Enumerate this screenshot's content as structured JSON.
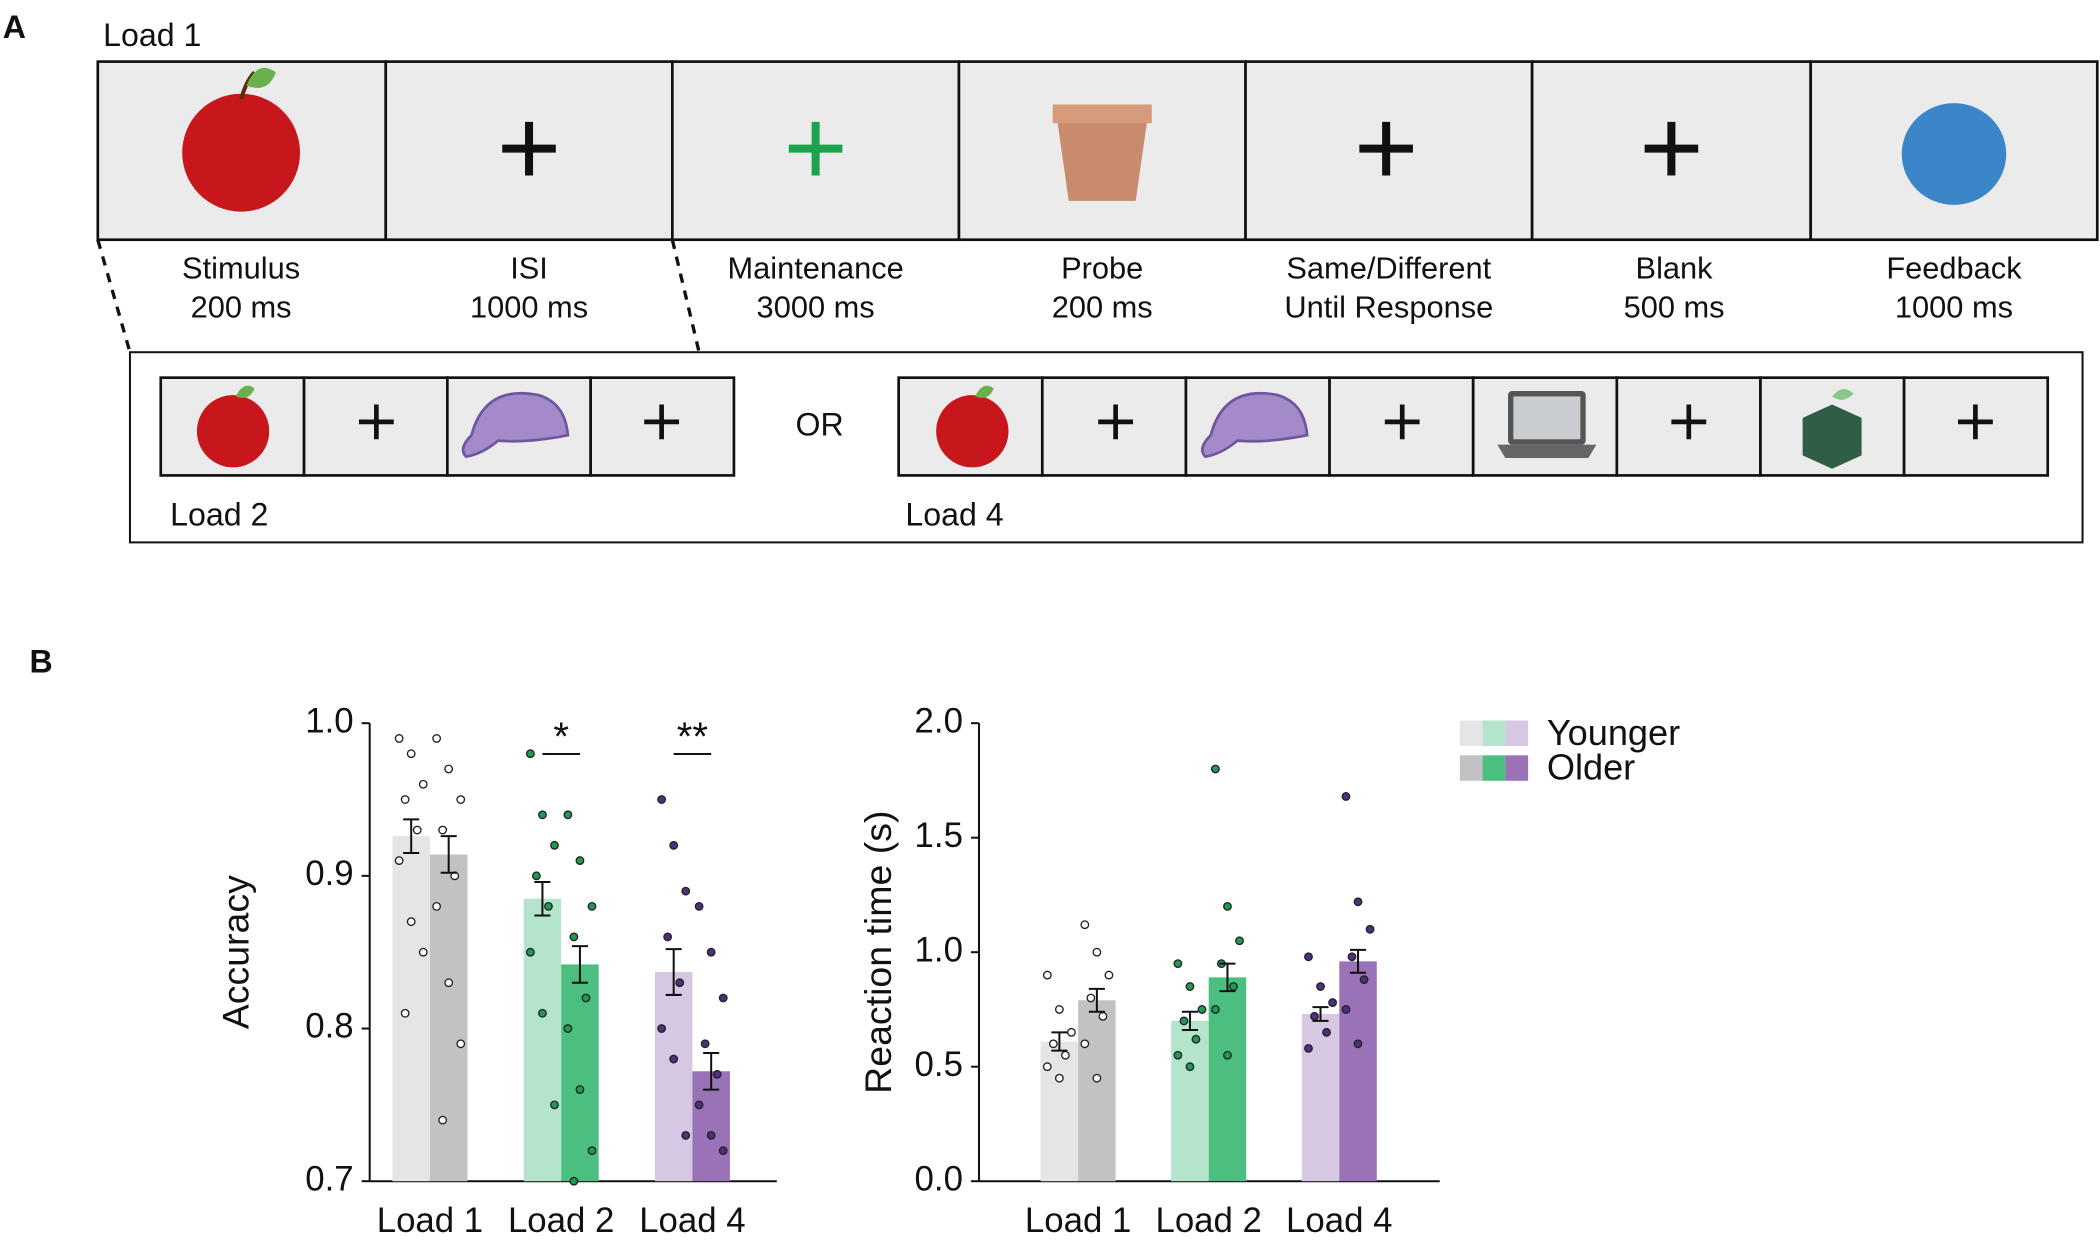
{
  "diagram": {
    "label": "A",
    "load1": "Load 1",
    "steps": [
      {
        "name": "Stimulus",
        "duration": "200 ms"
      },
      {
        "name": "ISI",
        "duration": "1000 ms"
      },
      {
        "name": "Maintenance",
        "duration": "3000 ms"
      },
      {
        "name": "Probe",
        "duration": "200 ms"
      },
      {
        "name": "Same/Different",
        "duration": "Until Response"
      },
      {
        "name": "Blank",
        "duration": "500 ms"
      },
      {
        "name": "Feedback",
        "duration": "1000 ms"
      }
    ],
    "or": "OR",
    "load2": "Load 2",
    "load4": "Load 4"
  },
  "panel_b_label": "B",
  "chart_data": [
    {
      "type": "bar",
      "ylabel": "Accuracy",
      "categories": [
        "Load 1",
        "Load 2",
        "Load 4"
      ],
      "ylim": [
        0.7,
        1.0
      ],
      "yticks": [
        0.7,
        0.8,
        0.9,
        {
          "value": 1.0,
          "label": "1.0"
        }
      ],
      "annotations": [
        null,
        "*",
        "**"
      ],
      "series": [
        {
          "name": "Younger",
          "colors": [
            "#e4e5e7",
            "#b4e4cc",
            "#d6c7e2"
          ],
          "dot_colors": [
            "#ffffff",
            "#1f9a55",
            "#4e2f7d"
          ],
          "values": [
            0.926,
            0.885,
            0.837
          ],
          "errors": [
            0.011,
            0.011,
            0.015
          ],
          "points": [
            [
              0.99,
              0.98,
              0.96,
              0.95,
              0.93,
              0.91,
              0.87,
              0.85,
              0.81
            ],
            [
              0.98,
              0.94,
              0.92,
              0.9,
              0.88,
              0.85,
              0.81,
              0.75
            ],
            [
              0.95,
              0.92,
              0.89,
              0.86,
              0.83,
              0.8,
              0.78,
              0.73
            ]
          ]
        },
        {
          "name": "Older",
          "colors": [
            "#c1c2c4",
            "#4cbf80",
            "#9a72b8"
          ],
          "dot_colors": [
            "#ffffff",
            "#1f9a55",
            "#4e2f7d"
          ],
          "values": [
            0.914,
            0.842,
            0.772
          ],
          "errors": [
            0.012,
            0.012,
            0.012
          ],
          "points": [
            [
              0.99,
              0.97,
              0.95,
              0.93,
              0.9,
              0.88,
              0.83,
              0.79,
              0.74
            ],
            [
              0.94,
              0.91,
              0.88,
              0.86,
              0.82,
              0.8,
              0.76,
              0.72,
              0.7
            ],
            [
              0.88,
              0.85,
              0.82,
              0.79,
              0.77,
              0.75,
              0.73,
              0.72
            ]
          ]
        }
      ]
    },
    {
      "type": "bar",
      "ylabel": "Reaction time (s)",
      "categories": [
        "Load 1",
        "Load 2",
        "Load 4"
      ],
      "ylim": [
        0,
        2
      ],
      "yticks": [
        {
          "value": 0,
          "label": "0.0"
        },
        0.5,
        {
          "value": 1,
          "label": "1.0"
        },
        1.5,
        {
          "value": 2,
          "label": "2.0"
        }
      ],
      "legend": "upper right",
      "series": [
        {
          "name": "Younger",
          "colors": [
            "#e4e5e7",
            "#b4e4cc",
            "#d6c7e2"
          ],
          "dot_colors": [
            "#ffffff",
            "#1f9a55",
            "#4e2f7d"
          ],
          "values": [
            0.61,
            0.7,
            0.73
          ],
          "errors": [
            0.04,
            0.04,
            0.03
          ],
          "points": [
            [
              0.9,
              0.75,
              0.65,
              0.6,
              0.55,
              0.5,
              0.45
            ],
            [
              0.95,
              0.85,
              0.75,
              0.7,
              0.62,
              0.55,
              0.5
            ],
            [
              0.98,
              0.85,
              0.78,
              0.72,
              0.65,
              0.58
            ]
          ]
        },
        {
          "name": "Older",
          "colors": [
            "#c1c2c4",
            "#4cbf80",
            "#9a72b8"
          ],
          "dot_colors": [
            "#ffffff",
            "#1f9a55",
            "#4e2f7d"
          ],
          "values": [
            0.79,
            0.89,
            0.96
          ],
          "errors": [
            0.05,
            0.06,
            0.05
          ],
          "points": [
            [
              1.12,
              1.0,
              0.9,
              0.8,
              0.72,
              0.6,
              0.45
            ],
            [
              1.8,
              1.2,
              1.05,
              0.95,
              0.85,
              0.75,
              0.55
            ],
            [
              1.68,
              1.22,
              1.1,
              0.98,
              0.88,
              0.75,
              0.6
            ]
          ]
        }
      ]
    }
  ]
}
